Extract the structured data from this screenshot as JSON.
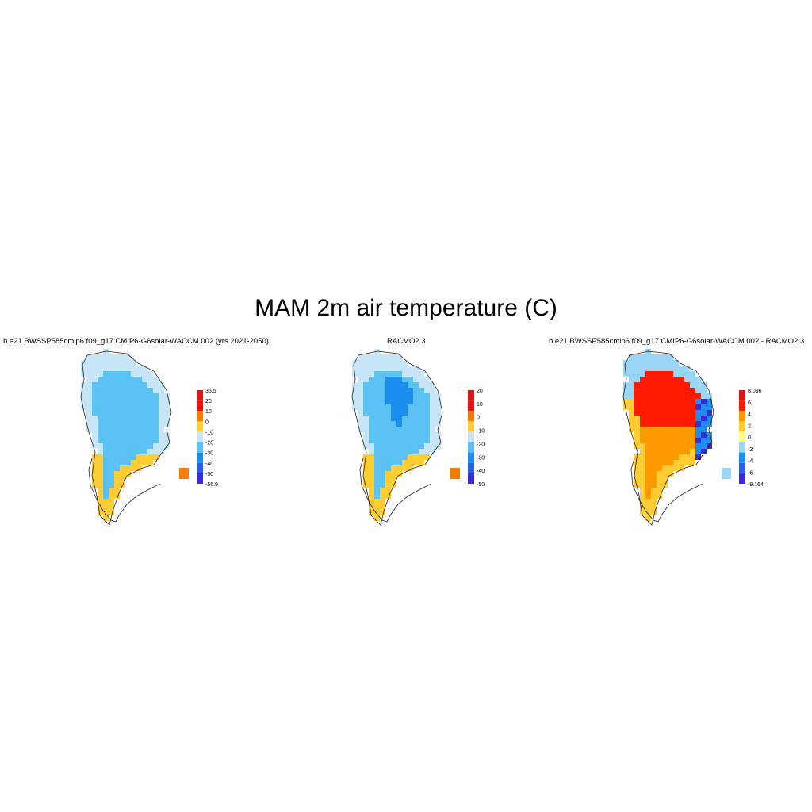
{
  "title": "MAM 2m air temperature (C)",
  "panels": [
    {
      "title": "b.e21.BWSSP585cmip6.f09_g17.CMIP6-G6solar-WACCM.002 (yrs 2021-2050)",
      "colorbar": {
        "labels": [
          "35.5",
          "20",
          "10",
          "0",
          "-10",
          "-20",
          "-30",
          "-40",
          "-50",
          "-56.9"
        ],
        "colors": [
          "#d7191c",
          "#ee1010",
          "#f47c00",
          "#ffcc33",
          "#c6e6f7",
          "#5bc3f3",
          "#1b8ef0",
          "#2a5de8",
          "#3b2bd9"
        ]
      },
      "field": "model"
    },
    {
      "title": "RACMO2.3",
      "colorbar": {
        "labels": [
          "20",
          "10",
          "0",
          "-10",
          "-20",
          "-30",
          "-40",
          "-50"
        ],
        "colors": [
          "#d7191c",
          "#ee1010",
          "#f47c00",
          "#ffcc33",
          "#c6e6f7",
          "#5bc3f3",
          "#1b8ef0",
          "#2a5de8",
          "#3b2bd9"
        ]
      },
      "field": "racmo"
    },
    {
      "title": "b.e21.BWSSP585cmip6.f09_g17.CMIP6-G6solar-WACCM.002 - RACMO2.3",
      "colorbar": {
        "labels": [
          "8.096",
          "6",
          "4",
          "2",
          "0",
          "-2",
          "-4",
          "-6",
          "-9.164"
        ],
        "colors": [
          "#d7191c",
          "#ff1a00",
          "#ff9900",
          "#ffcc33",
          "#ffff80",
          "#99d6f5",
          "#1b8ef0",
          "#2a5de8",
          "#3b2bd9"
        ]
      },
      "field": "diff"
    }
  ]
}
